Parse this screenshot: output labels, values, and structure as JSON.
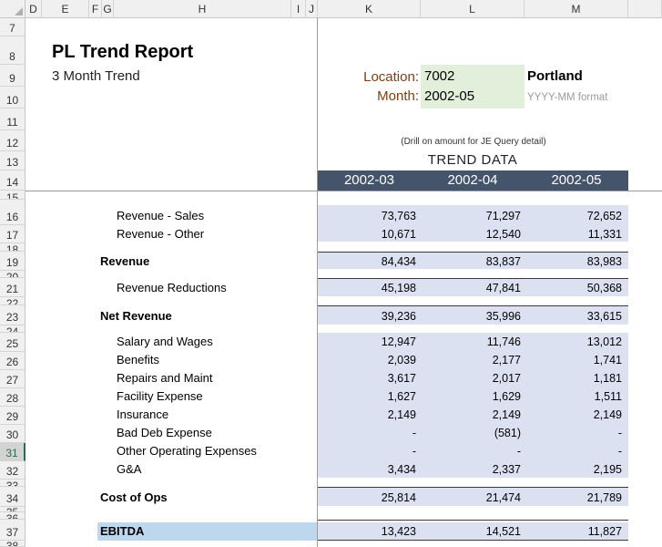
{
  "columns": [
    "D",
    "E",
    "F",
    "G",
    "H",
    "I",
    "J",
    "K",
    "L",
    "M"
  ],
  "rows": [
    "7",
    "8",
    "9",
    "10",
    "11",
    "12",
    "13",
    "14",
    "15",
    "16",
    "17",
    "18",
    "19",
    "20",
    "21",
    "22",
    "23",
    "24",
    "25",
    "26",
    "27",
    "28",
    "29",
    "30",
    "31",
    "32",
    "33",
    "34",
    "35",
    "36",
    "37",
    "38"
  ],
  "selected_row": "31",
  "report": {
    "title": "PL Trend Report",
    "subtitle": "3 Month Trend",
    "location_label": "Location:",
    "location_value": "7002",
    "location_name": "Portland",
    "month_label": "Month:",
    "month_value": "2002-05",
    "month_hint": "YYYY-MM format",
    "drill_note": "(Drill on amount for JE Query detail)",
    "trend_header": "TREND DATA",
    "periods": [
      "2002-03",
      "2002-04",
      "2002-05"
    ]
  },
  "lines": [
    {
      "label": "Revenue - Sales",
      "values": [
        "73,763",
        "71,297",
        "72,652"
      ]
    },
    {
      "label": "Revenue - Other",
      "values": [
        "10,671",
        "12,540",
        "11,331"
      ]
    },
    {
      "label": "Revenue",
      "values": [
        "84,434",
        "83,837",
        "83,983"
      ]
    },
    {
      "label": "Revenue Reductions",
      "values": [
        "45,198",
        "47,841",
        "50,368"
      ]
    },
    {
      "label": "Net Revenue",
      "values": [
        "39,236",
        "35,996",
        "33,615"
      ]
    },
    {
      "label": "Salary and Wages",
      "values": [
        "12,947",
        "11,746",
        "13,012"
      ]
    },
    {
      "label": "Benefits",
      "values": [
        "2,039",
        "2,177",
        "1,741"
      ]
    },
    {
      "label": "Repairs and Maint",
      "values": [
        "3,617",
        "2,017",
        "1,181"
      ]
    },
    {
      "label": "Facility Expense",
      "values": [
        "1,627",
        "1,629",
        "1,511"
      ]
    },
    {
      "label": "Insurance",
      "values": [
        "2,149",
        "2,149",
        "2,149"
      ]
    },
    {
      "label": "Bad Deb Expense",
      "values": [
        "-",
        "(581)",
        "-"
      ]
    },
    {
      "label": "Other Operating Expenses",
      "values": [
        "-",
        "-",
        "-"
      ]
    },
    {
      "label": "G&A",
      "values": [
        "3,434",
        "2,337",
        "2,195"
      ]
    },
    {
      "label": "Cost of Ops",
      "values": [
        "25,814",
        "21,474",
        "21,789"
      ]
    },
    {
      "label": "EBITDA",
      "values": [
        "13,423",
        "14,521",
        "11,827"
      ]
    }
  ],
  "colors": {
    "header_bar": "#44546a",
    "data_band": "#dce1f2",
    "input_fill": "#e2efda",
    "label_accent": "#843c0c",
    "ebitda_fill": "#bdd7ee",
    "selected_row_accent": "#217346"
  }
}
